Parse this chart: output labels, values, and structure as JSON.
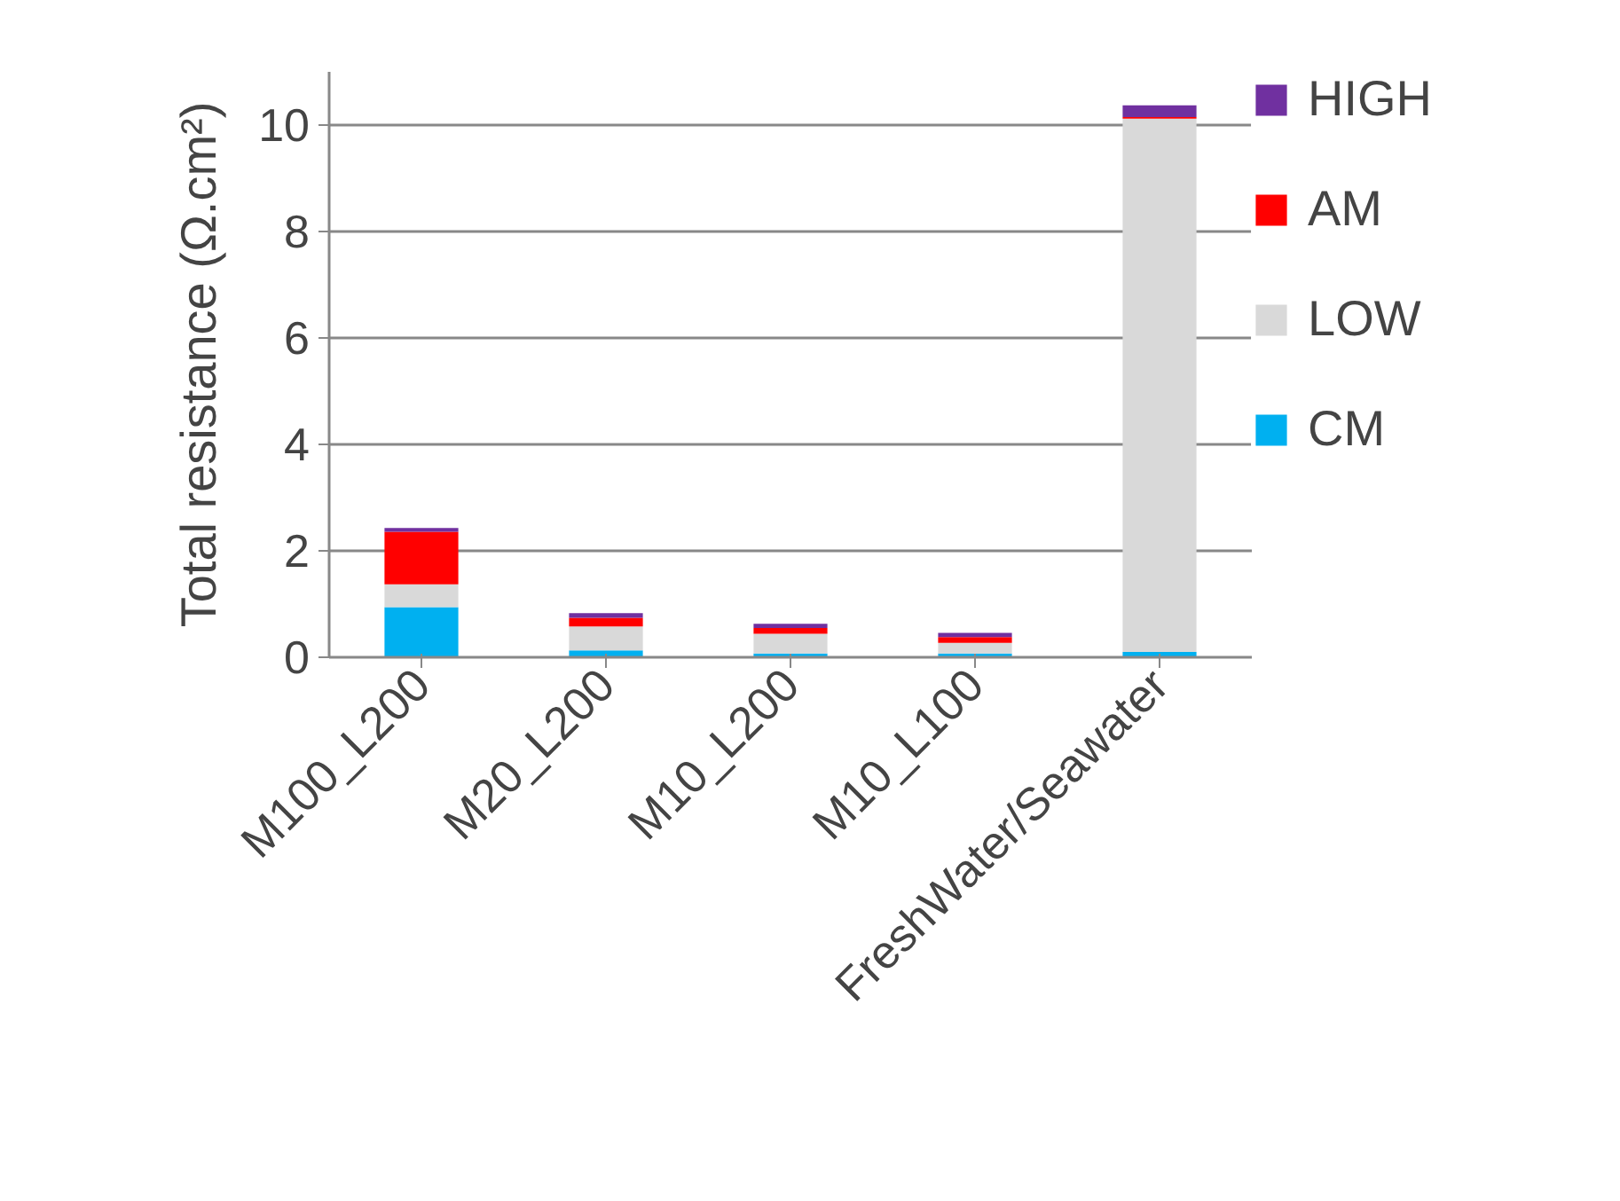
{
  "chart_data": {
    "type": "bar",
    "stacked": true,
    "ylabel": "Total resistance (Ω.cm²)",
    "categories": [
      "M100_L200",
      "M20_L200",
      "M10_L200",
      "M10_L100",
      "FreshWater/Seawater"
    ],
    "series": [
      {
        "name": "CM",
        "color": "#00b0f0",
        "values": [
          0.94,
          0.13,
          0.07,
          0.07,
          0.1
        ]
      },
      {
        "name": "LOW",
        "color": "#d9d9d9",
        "values": [
          0.43,
          0.45,
          0.37,
          0.2,
          10.02
        ]
      },
      {
        "name": "AM",
        "color": "#ff0000",
        "values": [
          0.99,
          0.16,
          0.11,
          0.11,
          0.03
        ]
      },
      {
        "name": "HIGH",
        "color": "#7030a0",
        "values": [
          0.07,
          0.09,
          0.08,
          0.08,
          0.22
        ]
      }
    ],
    "ylim": [
      0,
      11
    ],
    "yticks": [
      0,
      2,
      4,
      6,
      8,
      10
    ],
    "grid": "y",
    "legend": "right"
  }
}
